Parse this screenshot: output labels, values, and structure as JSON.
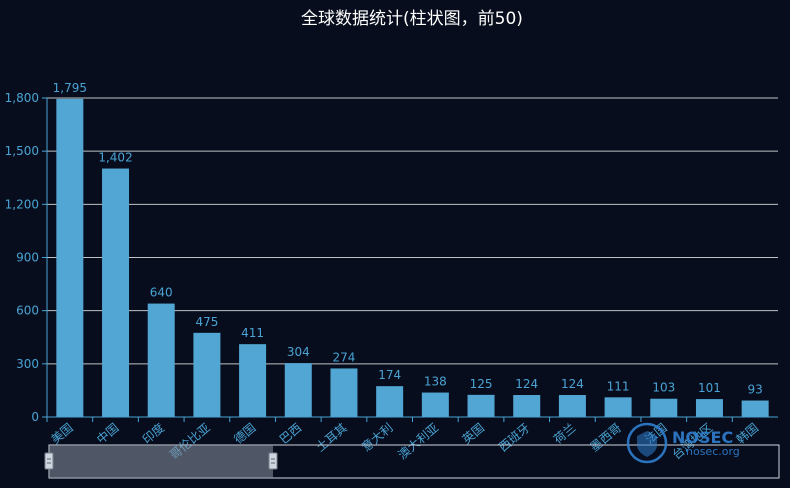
{
  "chart_data": {
    "type": "bar",
    "title": "全球数据统计(柱状图，前50)",
    "categories": [
      "美国",
      "中国",
      "印度",
      "哥伦比亚",
      "德国",
      "巴西",
      "土耳其",
      "意大利",
      "澳大利亚",
      "英国",
      "西班牙",
      "荷兰",
      "墨西哥",
      "法国",
      "台湾地区",
      "韩国"
    ],
    "values": [
      1795,
      1402,
      640,
      475,
      411,
      304,
      274,
      174,
      138,
      125,
      124,
      124,
      111,
      103,
      101,
      93
    ],
    "ylim": [
      0,
      1800
    ],
    "yticks": [
      0,
      300,
      600,
      900,
      1200,
      1500,
      1800
    ],
    "ytick_labels": [
      "0",
      "300",
      "600",
      "900",
      "1,200",
      "1,500",
      "1,800"
    ],
    "value_labels": [
      "1,795",
      "1,402",
      "640",
      "475",
      "411",
      "304",
      "274",
      "174",
      "138",
      "125",
      "124",
      "124",
      "111",
      "103",
      "101",
      "93"
    ],
    "grid": true,
    "bar_color": "#52a6d4"
  },
  "watermark": {
    "brand": "NOSEC",
    "sub": "nosec.org"
  },
  "colors": {
    "background": "#070d1c",
    "axis": "#4aa3d4",
    "grid": "#ffffff"
  }
}
